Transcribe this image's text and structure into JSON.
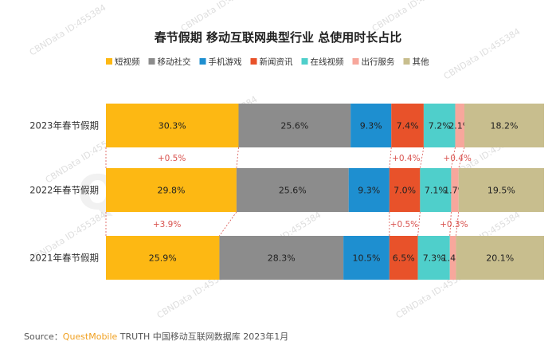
{
  "chart_data": {
    "type": "bar",
    "orientation": "horizontal-stacked-100",
    "title": "春节假期 移动互联网典型行业 总使用时长占比",
    "categories": [
      "2023年春节假期",
      "2022年春节假期",
      "2021年春节假期"
    ],
    "series": [
      {
        "name": "短视频",
        "color": "#FDB813",
        "values": [
          30.3,
          29.8,
          25.9
        ]
      },
      {
        "name": "移动社交",
        "color": "#8C8C8C",
        "values": [
          25.6,
          25.6,
          28.3
        ]
      },
      {
        "name": "手机游戏",
        "color": "#1E8FD0",
        "values": [
          9.3,
          9.3,
          10.5
        ]
      },
      {
        "name": "新闻资讯",
        "color": "#E8522A",
        "values": [
          7.4,
          7.0,
          6.5
        ]
      },
      {
        "name": "在线视频",
        "color": "#4FCFCB",
        "values": [
          7.2,
          7.1,
          7.3
        ]
      },
      {
        "name": "出行服务",
        "color": "#F7A79C",
        "values": [
          2.1,
          1.7,
          1.4
        ]
      },
      {
        "name": "其他",
        "color": "#C8BE8E",
        "values": [
          18.2,
          19.5,
          20.1
        ]
      }
    ],
    "value_labels": [
      [
        "30.3%",
        "25.6%",
        "9.3%",
        "7.4%",
        "7.2%",
        "2.1%",
        "18.2%"
      ],
      [
        "29.8%",
        "25.6%",
        "9.3%",
        "7.0%",
        "7.1%",
        "1.7%",
        "19.5%"
      ],
      [
        "25.9%",
        "28.3%",
        "10.5%",
        "6.5%",
        "7.3%",
        "1.4%",
        "20.1%"
      ]
    ],
    "deltas": [
      {
        "between": [
          0,
          1
        ],
        "series": "短视频",
        "label": "+0.5%"
      },
      {
        "between": [
          0,
          1
        ],
        "series": "新闻资讯",
        "label": "+0.4%"
      },
      {
        "between": [
          0,
          1
        ],
        "series": "出行服务",
        "label": "+0.4%"
      },
      {
        "between": [
          1,
          2
        ],
        "series": "短视频",
        "label": "+3.9%"
      },
      {
        "between": [
          1,
          2
        ],
        "series": "新闻资讯",
        "label": "+0.5%"
      },
      {
        "between": [
          1,
          2
        ],
        "series": "出行服务",
        "label": "+0.3%"
      }
    ],
    "legend_position": "top",
    "grid": false
  },
  "source": {
    "prefix": "Source：",
    "brand": "QuestMobile",
    "rest": " TRUTH 中国移动互联网数据库 2023年1月"
  },
  "watermark": {
    "text": "CBNData ID:455384",
    "big": "QUEST MOBILE"
  }
}
